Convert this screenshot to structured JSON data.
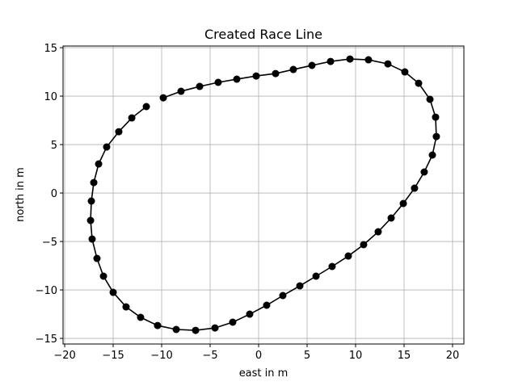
{
  "chart_data": {
    "type": "line",
    "title": "Created Race Line",
    "x_label": "east in m",
    "y_label": "north in m",
    "x": [
      -11.58,
      -13.08,
      -14.42,
      -15.67,
      -16.5,
      -17.0,
      -17.25,
      -17.33,
      -17.17,
      -16.67,
      -16.0,
      -15.0,
      -13.67,
      -12.17,
      -10.42,
      -8.5,
      -6.5,
      -4.5,
      -2.67,
      -0.92,
      0.83,
      2.5,
      4.25,
      5.92,
      7.58,
      9.25,
      10.83,
      12.33,
      13.67,
      14.92,
      16.08,
      17.08,
      17.92,
      18.33,
      18.25,
      17.67,
      16.5,
      15.08,
      13.33,
      11.33,
      9.42,
      7.42,
      5.5,
      3.58,
      1.75,
      -0.25,
      -2.25,
      -4.17,
      -6.08,
      -8.0,
      -9.83
    ],
    "series": [
      {
        "color": "#000000",
        "values": [
          8.92,
          7.75,
          6.33,
          4.75,
          3.0,
          1.08,
          -0.83,
          -2.83,
          -4.75,
          -6.75,
          -8.58,
          -10.25,
          -11.75,
          -12.83,
          -13.67,
          -14.08,
          -14.17,
          -13.92,
          -13.33,
          -12.5,
          -11.58,
          -10.58,
          -9.58,
          -8.58,
          -7.58,
          -6.5,
          -5.33,
          -4.0,
          -2.58,
          -1.08,
          0.5,
          2.17,
          3.92,
          5.83,
          7.83,
          9.67,
          11.33,
          12.5,
          13.33,
          13.75,
          13.83,
          13.58,
          13.17,
          12.75,
          12.33,
          12.08,
          11.75,
          11.42,
          11.0,
          10.5,
          9.83
        ]
      }
    ],
    "xlim": [
      -20.17,
      21.17
    ],
    "ylim": [
      -15.58,
      15.17
    ],
    "xticks": [
      {
        "value": -20,
        "label": "−20"
      },
      {
        "value": -15,
        "label": "−15"
      },
      {
        "value": -10,
        "label": "−10"
      },
      {
        "value": -5,
        "label": "−5"
      },
      0,
      5,
      10,
      15,
      20
    ],
    "yticks": [
      {
        "value": -15,
        "label": "−15"
      },
      {
        "value": -10,
        "label": "−10"
      },
      {
        "value": -5,
        "label": "−5"
      },
      0,
      5,
      10,
      15
    ],
    "grid": true
  }
}
